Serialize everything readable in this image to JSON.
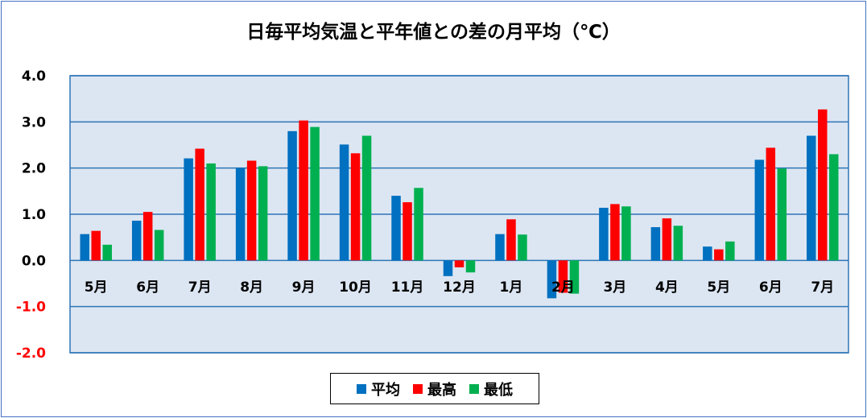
{
  "chart_data": {
    "type": "bar",
    "title": "日毎平均気温と平年値との差の月平均（℃）",
    "categories": [
      "5月",
      "6月",
      "7月",
      "8月",
      "9月",
      "10月",
      "11月",
      "12月",
      "1月",
      "2月",
      "3月",
      "4月",
      "5月",
      "6月",
      "7月"
    ],
    "series": [
      {
        "name": "平均",
        "color": "#0070c0",
        "values": [
          0.57,
          0.86,
          2.21,
          2.0,
          2.8,
          2.51,
          1.4,
          -0.34,
          0.57,
          -0.82,
          1.14,
          0.72,
          0.3,
          2.18,
          2.7
        ]
      },
      {
        "name": "最高",
        "color": "#ff0000",
        "values": [
          0.64,
          1.05,
          2.42,
          2.16,
          3.03,
          2.32,
          1.26,
          -0.15,
          0.89,
          -0.7,
          1.22,
          0.91,
          0.24,
          2.44,
          3.27
        ]
      },
      {
        "name": "最低",
        "color": "#00b050",
        "values": [
          0.34,
          0.66,
          2.1,
          2.04,
          2.89,
          2.7,
          1.57,
          -0.26,
          0.56,
          -0.72,
          1.17,
          0.75,
          0.41,
          1.99,
          2.3
        ]
      }
    ],
    "ylim": [
      -2.0,
      4.0
    ],
    "yticks": [
      "4.0",
      "3.0",
      "2.0",
      "1.0",
      "0.0",
      "-1.0",
      "-2.0"
    ],
    "ytick_values": [
      4,
      3,
      2,
      1,
      0,
      -1,
      -2
    ],
    "negative_tick_color": "#ff0000",
    "plot_background": "#dce6f2",
    "gridline_color": "#2e75b6",
    "grid": true,
    "legend_position": "bottom"
  }
}
